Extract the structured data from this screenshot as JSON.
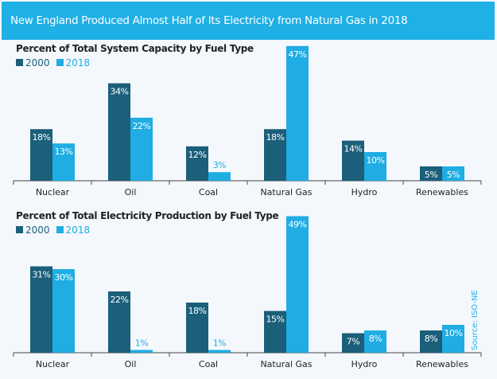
{
  "header": {
    "title": "New England Produced Almost Half of Its Electricity from Natural Gas in 2018"
  },
  "source": "Source: ISO-NE",
  "colors": {
    "2000": "#1b5f7a",
    "2018": "#1fade4",
    "header": "#1fb0e6"
  },
  "chart_data": [
    {
      "type": "bar",
      "title": "Percent of Total System Capacity by Fuel Type",
      "categories": [
        "Nuclear",
        "Oil",
        "Coal",
        "Natural Gas",
        "Hydro",
        "Renewables"
      ],
      "series": [
        {
          "name": "2000",
          "values": [
            18,
            34,
            12,
            18,
            14,
            5
          ]
        },
        {
          "name": "2018",
          "values": [
            13,
            22,
            3,
            47,
            10,
            5
          ]
        }
      ],
      "unit": "%",
      "legend": "top-left",
      "grid": false
    },
    {
      "type": "bar",
      "title": "Percent of Total Electricity Production by Fuel Type",
      "categories": [
        "Nuclear",
        "Oil",
        "Coal",
        "Natural Gas",
        "Hydro",
        "Renewables"
      ],
      "series": [
        {
          "name": "2000",
          "values": [
            31,
            22,
            18,
            15,
            7,
            8
          ]
        },
        {
          "name": "2018",
          "values": [
            30,
            1,
            1,
            49,
            8,
            10
          ]
        }
      ],
      "unit": "%",
      "legend": "top-left",
      "grid": false
    }
  ]
}
